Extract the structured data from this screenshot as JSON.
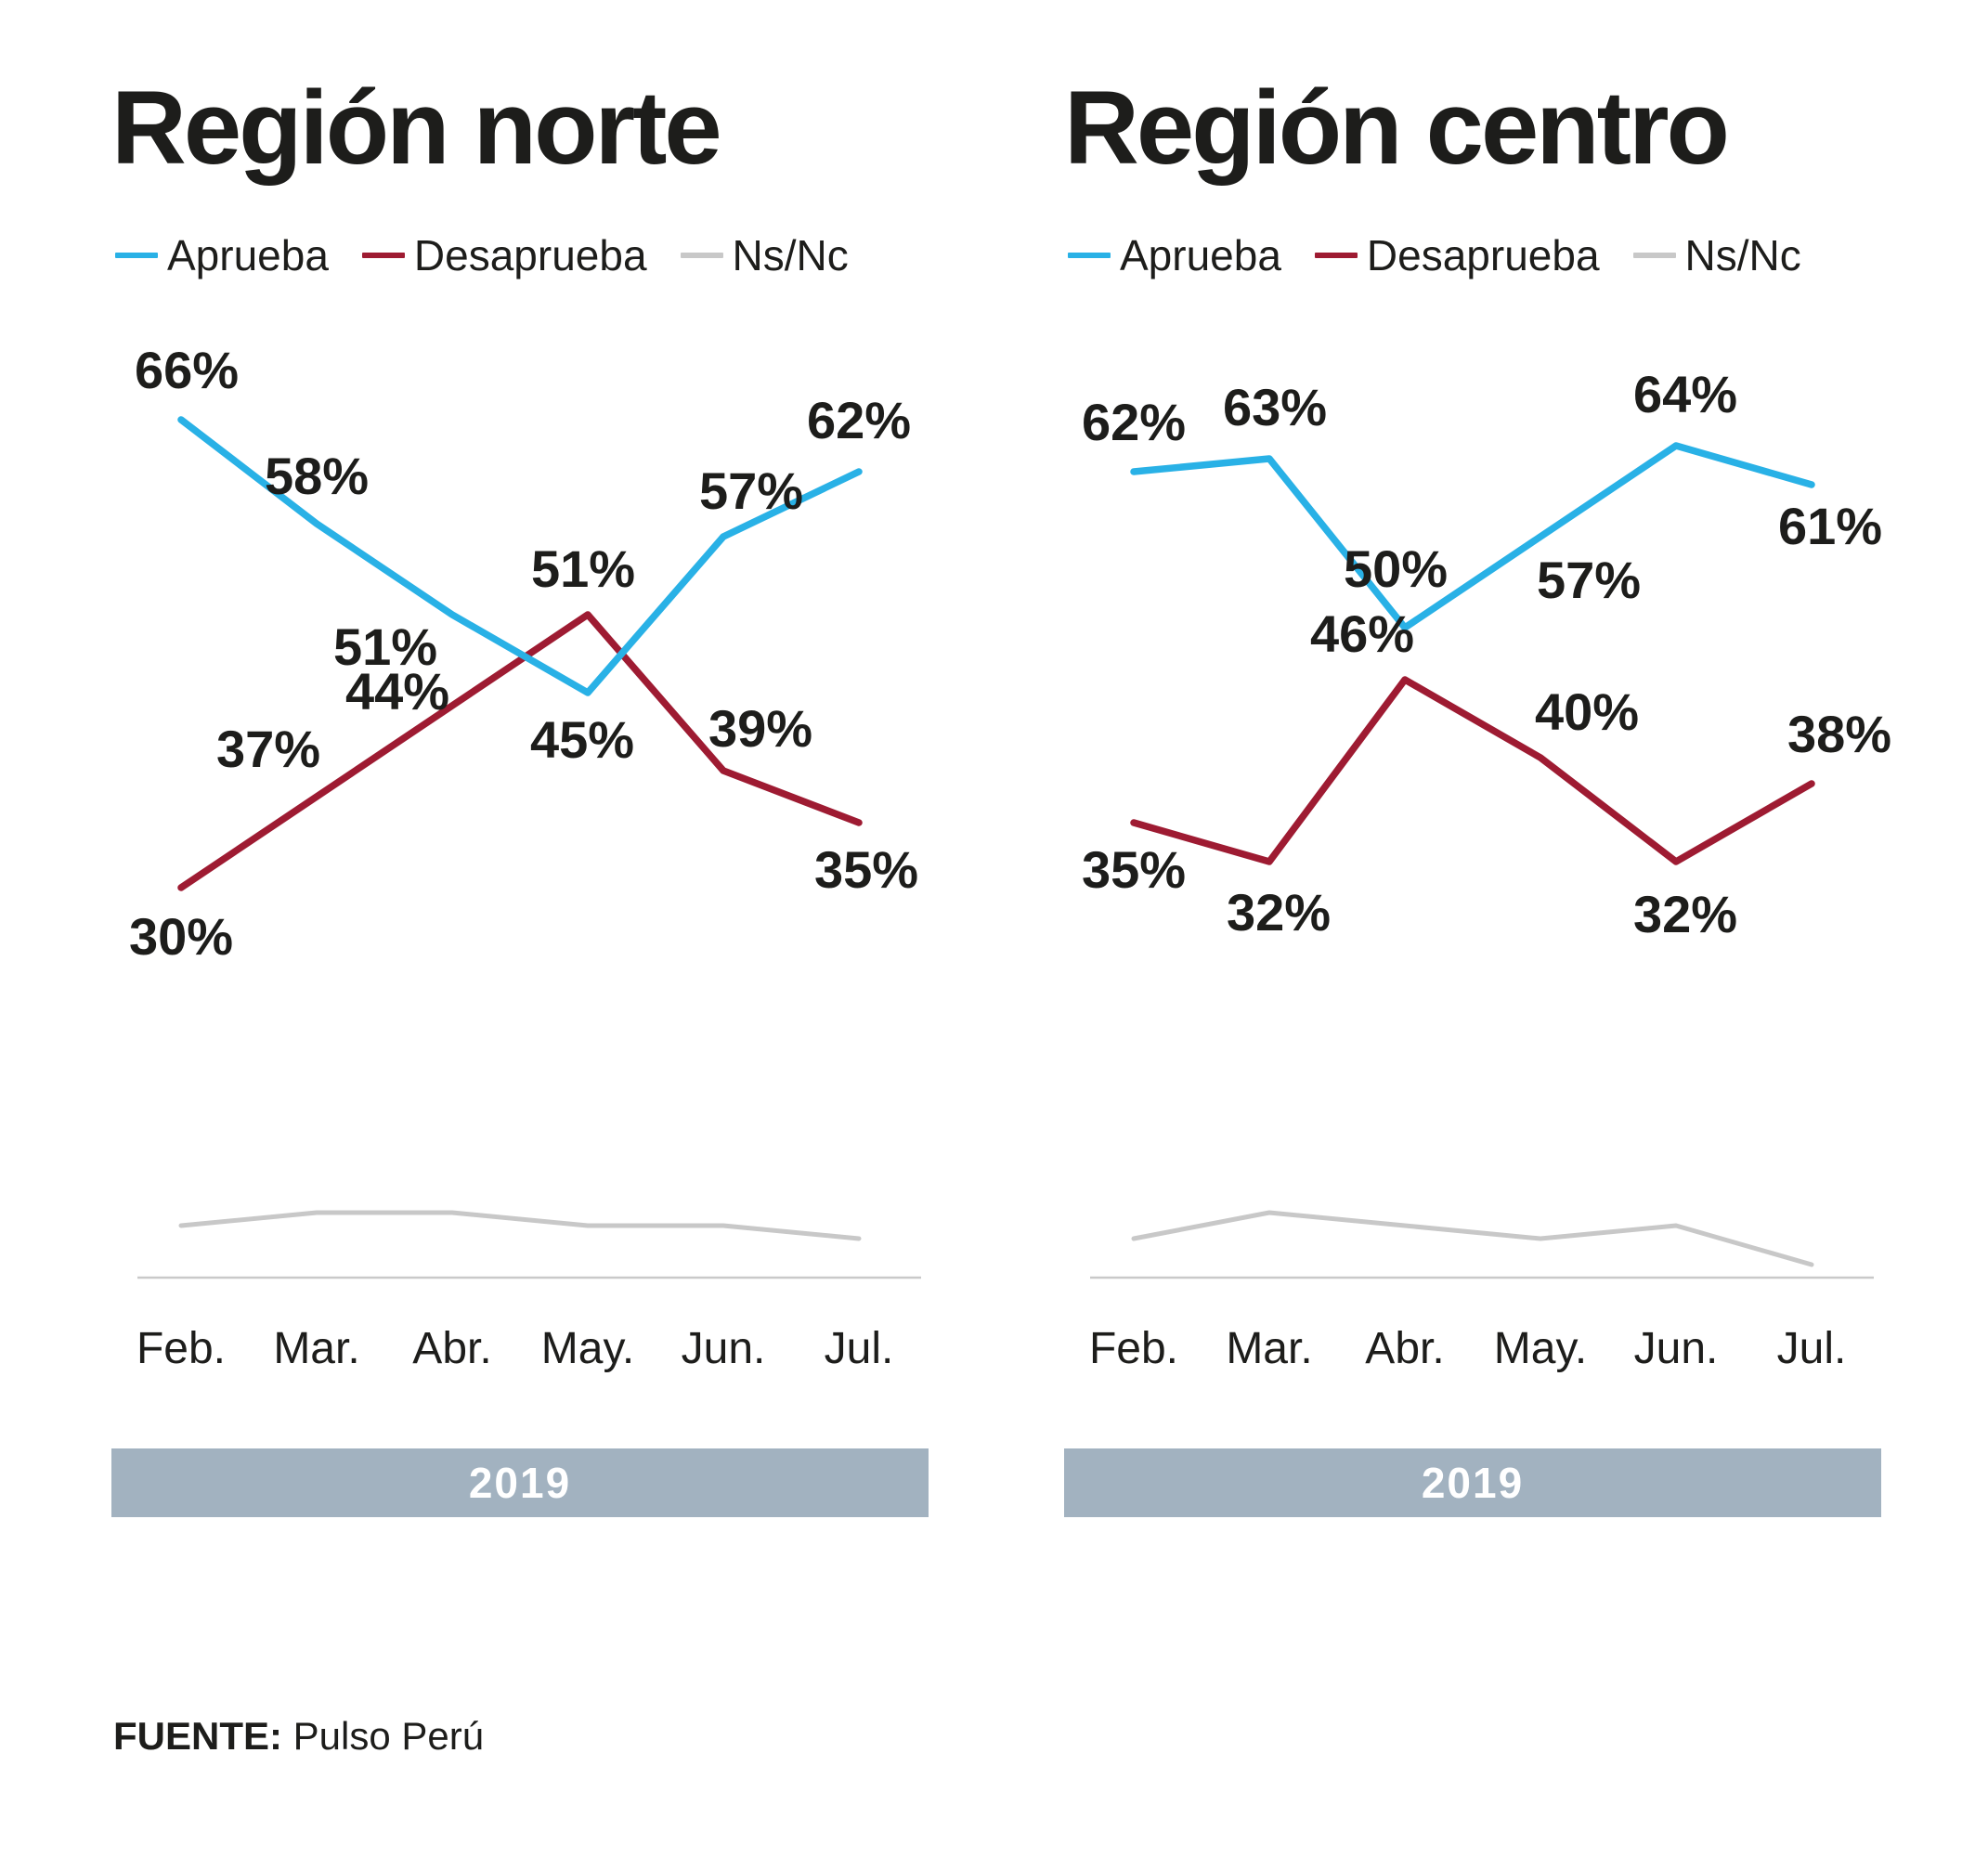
{
  "colors": {
    "aprueba": "#29b1e6",
    "desaprueba": "#9e1b32",
    "nsnc": "#c8c8c8",
    "year_band": "#a2b2c0",
    "axis": "#c9c9c9",
    "text": "#1d1d1b"
  },
  "footer": {
    "source_label": "FUENTE:",
    "source_value": "Pulso Perú"
  },
  "chart_data": [
    {
      "type": "line",
      "title": "Región norte",
      "year_band": "2019",
      "legend_position": "top",
      "grid": false,
      "ylim": [
        0,
        70
      ],
      "categories": [
        "Feb.",
        "Mar.",
        "Abr.",
        "May.",
        "Jun.",
        "Jul."
      ],
      "legend": [
        {
          "label": "Aprueba",
          "color_key": "aprueba"
        },
        {
          "label": "Desaprueba",
          "color_key": "desaprueba"
        },
        {
          "label": "Ns/Nc",
          "color_key": "nsnc"
        }
      ],
      "series": [
        {
          "name": "Aprueba",
          "color_key": "aprueba",
          "values": [
            66,
            58,
            51,
            45,
            57,
            62
          ],
          "labels": [
            "66%",
            "58%",
            "51%",
            "45%",
            "57%",
            "62%"
          ]
        },
        {
          "name": "Desaprueba",
          "color_key": "desaprueba",
          "values": [
            30,
            37,
            44,
            51,
            39,
            35
          ],
          "labels": [
            "30%",
            "37%",
            "44%",
            "51%",
            "39%",
            "35%"
          ]
        },
        {
          "name": "Ns/Nc",
          "color_key": "nsnc",
          "values": [
            4,
            5,
            5,
            4,
            4,
            3
          ],
          "labels": []
        }
      ]
    },
    {
      "type": "line",
      "title": "Región centro",
      "year_band": "2019",
      "legend_position": "top",
      "grid": false,
      "ylim": [
        0,
        70
      ],
      "categories": [
        "Feb.",
        "Mar.",
        "Abr.",
        "May.",
        "Jun.",
        "Jul."
      ],
      "legend": [
        {
          "label": "Aprueba",
          "color_key": "aprueba"
        },
        {
          "label": "Desaprueba",
          "color_key": "desaprueba"
        },
        {
          "label": "Ns/Nc",
          "color_key": "nsnc"
        }
      ],
      "series": [
        {
          "name": "Aprueba",
          "color_key": "aprueba",
          "values": [
            62,
            63,
            50,
            57,
            64,
            61
          ],
          "labels": [
            "62%",
            "63%",
            "50%",
            "57%",
            "64%",
            "61%"
          ]
        },
        {
          "name": "Desaprueba",
          "color_key": "desaprueba",
          "values": [
            35,
            32,
            46,
            40,
            32,
            38
          ],
          "labels": [
            "35%",
            "32%",
            "46%",
            "40%",
            "32%",
            "38%"
          ]
        },
        {
          "name": "Ns/Nc",
          "color_key": "nsnc",
          "values": [
            3,
            5,
            4,
            3,
            4,
            1
          ],
          "labels": []
        }
      ]
    }
  ]
}
